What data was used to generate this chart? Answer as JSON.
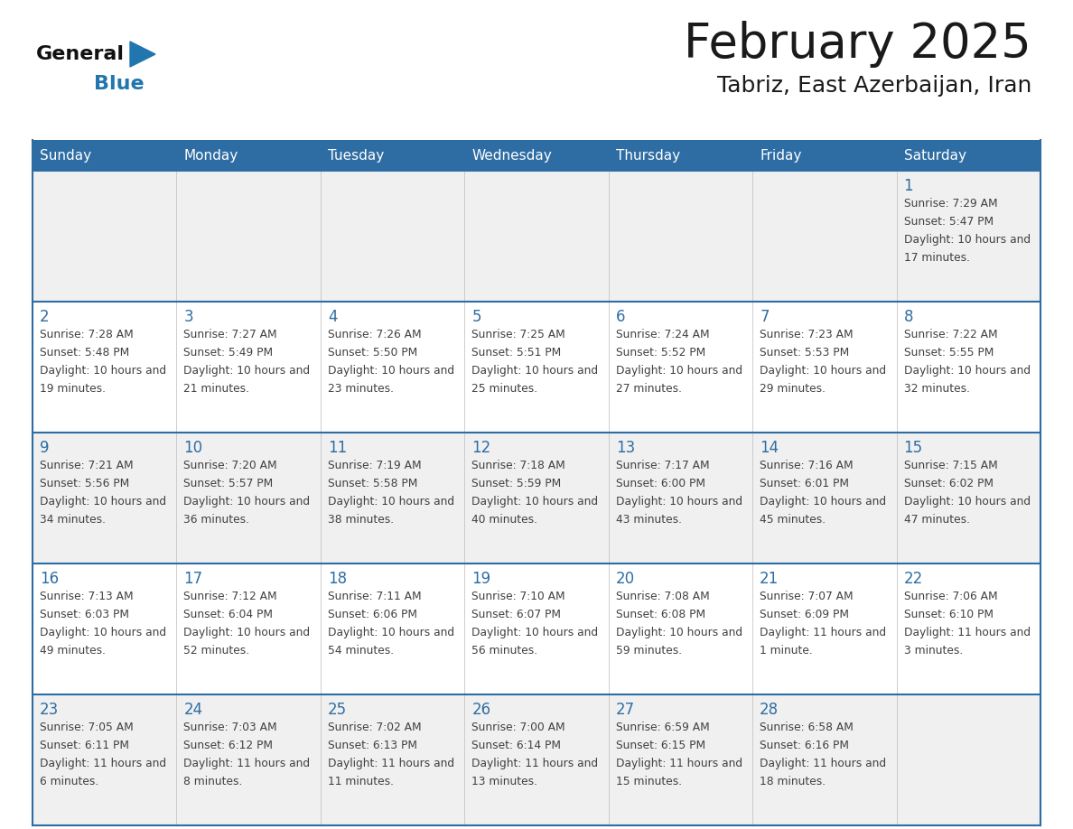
{
  "title": "February 2025",
  "subtitle": "Tabriz, East Azerbaijan, Iran",
  "days_of_week": [
    "Sunday",
    "Monday",
    "Tuesday",
    "Wednesday",
    "Thursday",
    "Friday",
    "Saturday"
  ],
  "header_bg": "#2E6DA4",
  "header_text": "#FFFFFF",
  "row_bg_odd": "#F0F0F0",
  "row_bg_even": "#FFFFFF",
  "line_color": "#2E6DA4",
  "title_color": "#1a1a1a",
  "day_num_color": "#2E6DA4",
  "text_color": "#404040",
  "logo_general_color": "#111111",
  "logo_blue_color": "#2176AE",
  "weeks": [
    [
      {
        "day": null,
        "sunrise": null,
        "sunset": null,
        "daylight": null
      },
      {
        "day": null,
        "sunrise": null,
        "sunset": null,
        "daylight": null
      },
      {
        "day": null,
        "sunrise": null,
        "sunset": null,
        "daylight": null
      },
      {
        "day": null,
        "sunrise": null,
        "sunset": null,
        "daylight": null
      },
      {
        "day": null,
        "sunrise": null,
        "sunset": null,
        "daylight": null
      },
      {
        "day": null,
        "sunrise": null,
        "sunset": null,
        "daylight": null
      },
      {
        "day": 1,
        "sunrise": "7:29 AM",
        "sunset": "5:47 PM",
        "daylight": "10 hours and 17 minutes."
      }
    ],
    [
      {
        "day": 2,
        "sunrise": "7:28 AM",
        "sunset": "5:48 PM",
        "daylight": "10 hours and 19 minutes."
      },
      {
        "day": 3,
        "sunrise": "7:27 AM",
        "sunset": "5:49 PM",
        "daylight": "10 hours and 21 minutes."
      },
      {
        "day": 4,
        "sunrise": "7:26 AM",
        "sunset": "5:50 PM",
        "daylight": "10 hours and 23 minutes."
      },
      {
        "day": 5,
        "sunrise": "7:25 AM",
        "sunset": "5:51 PM",
        "daylight": "10 hours and 25 minutes."
      },
      {
        "day": 6,
        "sunrise": "7:24 AM",
        "sunset": "5:52 PM",
        "daylight": "10 hours and 27 minutes."
      },
      {
        "day": 7,
        "sunrise": "7:23 AM",
        "sunset": "5:53 PM",
        "daylight": "10 hours and 29 minutes."
      },
      {
        "day": 8,
        "sunrise": "7:22 AM",
        "sunset": "5:55 PM",
        "daylight": "10 hours and 32 minutes."
      }
    ],
    [
      {
        "day": 9,
        "sunrise": "7:21 AM",
        "sunset": "5:56 PM",
        "daylight": "10 hours and 34 minutes."
      },
      {
        "day": 10,
        "sunrise": "7:20 AM",
        "sunset": "5:57 PM",
        "daylight": "10 hours and 36 minutes."
      },
      {
        "day": 11,
        "sunrise": "7:19 AM",
        "sunset": "5:58 PM",
        "daylight": "10 hours and 38 minutes."
      },
      {
        "day": 12,
        "sunrise": "7:18 AM",
        "sunset": "5:59 PM",
        "daylight": "10 hours and 40 minutes."
      },
      {
        "day": 13,
        "sunrise": "7:17 AM",
        "sunset": "6:00 PM",
        "daylight": "10 hours and 43 minutes."
      },
      {
        "day": 14,
        "sunrise": "7:16 AM",
        "sunset": "6:01 PM",
        "daylight": "10 hours and 45 minutes."
      },
      {
        "day": 15,
        "sunrise": "7:15 AM",
        "sunset": "6:02 PM",
        "daylight": "10 hours and 47 minutes."
      }
    ],
    [
      {
        "day": 16,
        "sunrise": "7:13 AM",
        "sunset": "6:03 PM",
        "daylight": "10 hours and 49 minutes."
      },
      {
        "day": 17,
        "sunrise": "7:12 AM",
        "sunset": "6:04 PM",
        "daylight": "10 hours and 52 minutes."
      },
      {
        "day": 18,
        "sunrise": "7:11 AM",
        "sunset": "6:06 PM",
        "daylight": "10 hours and 54 minutes."
      },
      {
        "day": 19,
        "sunrise": "7:10 AM",
        "sunset": "6:07 PM",
        "daylight": "10 hours and 56 minutes."
      },
      {
        "day": 20,
        "sunrise": "7:08 AM",
        "sunset": "6:08 PM",
        "daylight": "10 hours and 59 minutes."
      },
      {
        "day": 21,
        "sunrise": "7:07 AM",
        "sunset": "6:09 PM",
        "daylight": "11 hours and 1 minute."
      },
      {
        "day": 22,
        "sunrise": "7:06 AM",
        "sunset": "6:10 PM",
        "daylight": "11 hours and 3 minutes."
      }
    ],
    [
      {
        "day": 23,
        "sunrise": "7:05 AM",
        "sunset": "6:11 PM",
        "daylight": "11 hours and 6 minutes."
      },
      {
        "day": 24,
        "sunrise": "7:03 AM",
        "sunset": "6:12 PM",
        "daylight": "11 hours and 8 minutes."
      },
      {
        "day": 25,
        "sunrise": "7:02 AM",
        "sunset": "6:13 PM",
        "daylight": "11 hours and 11 minutes."
      },
      {
        "day": 26,
        "sunrise": "7:00 AM",
        "sunset": "6:14 PM",
        "daylight": "11 hours and 13 minutes."
      },
      {
        "day": 27,
        "sunrise": "6:59 AM",
        "sunset": "6:15 PM",
        "daylight": "11 hours and 15 minutes."
      },
      {
        "day": 28,
        "sunrise": "6:58 AM",
        "sunset": "6:16 PM",
        "daylight": "11 hours and 18 minutes."
      },
      {
        "day": null,
        "sunrise": null,
        "sunset": null,
        "daylight": null
      }
    ]
  ]
}
